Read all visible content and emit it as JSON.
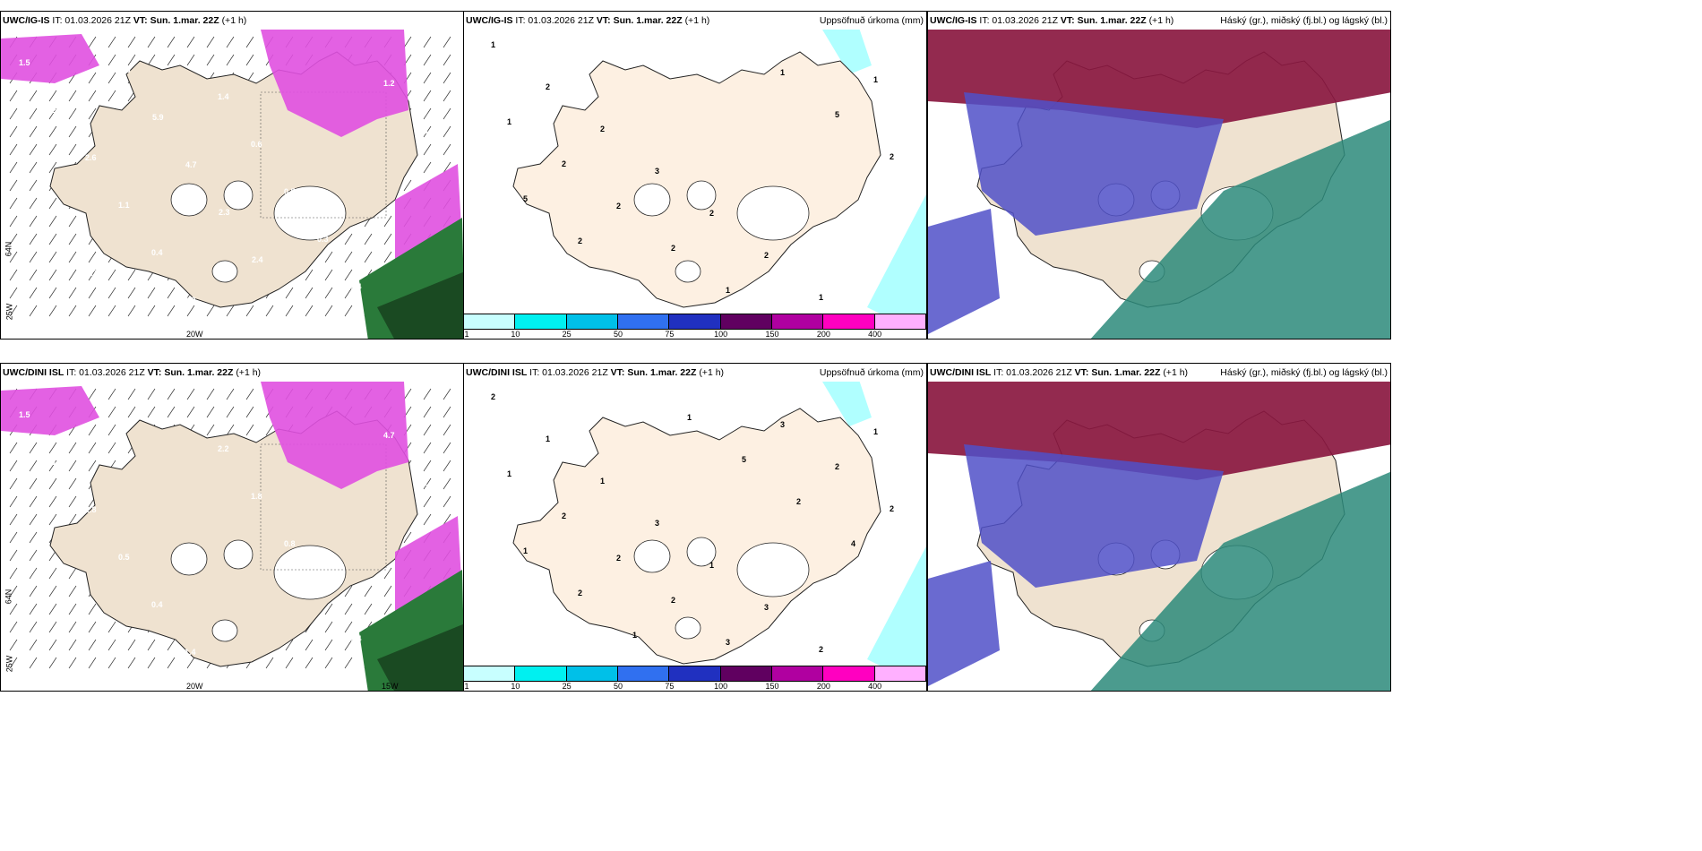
{
  "rows": [
    {
      "model": "UWC/IG-IS",
      "it": "IT: 01.03.2026 21Z",
      "vt_label": "VT:",
      "vt": "Sun. 1.mar. 22Z",
      "lead": "(+1 h)",
      "lat_label": "64N",
      "lon_left_label": "25W",
      "lon_mid_label": "20W"
    },
    {
      "model": "UWC/DINI ISL",
      "it": "IT: 01.03.2026 21Z",
      "vt_label": "VT:",
      "vt": "Sun. 1.mar. 22Z",
      "lead": "(+1 h)",
      "lat_label": "64N",
      "lon_left_label": "25W",
      "lon_mid_label": "20W",
      "lon_right_label": "15W"
    }
  ],
  "precip_title": "Uppsöfnuð úrkoma (mm)",
  "cloud_title": "Háský (gr.), miðský (fj.bl.) og lágský (bl.)",
  "colorbar": {
    "ticks": [
      "1",
      "10",
      "25",
      "50",
      "75",
      "100",
      "150",
      "200",
      "400"
    ],
    "colors": [
      "#c8ffff",
      "#00f0f0",
      "#00c0e8",
      "#3070f0",
      "#2030c0",
      "#600060",
      "#b000a0",
      "#ff00c0",
      "#ffb0ff"
    ]
  },
  "colors": {
    "land": "#efe2d0",
    "land_precip": "#fdf0e2",
    "glacier": "#ffffff",
    "snow_magenta": "#e050e0",
    "rain_green": "#2a7a3a",
    "high_cloud": "#8a1840",
    "mid_cloud": "#5050c8",
    "low_cloud": "#2c8a7a",
    "precip_cyan": "#b0ffff"
  },
  "precip_labels_top": [
    "1",
    "2",
    "2",
    "3",
    "2",
    "2",
    "1",
    "1",
    "1",
    "2",
    "2",
    "2",
    "1",
    "1",
    "5",
    "2",
    "5",
    "2"
  ],
  "precip_labels_bottom": [
    "2",
    "1",
    "1",
    "3",
    "1",
    "3",
    "2",
    "1",
    "1",
    "2",
    "2",
    "2",
    "3",
    "3",
    "2",
    "2",
    "1",
    "2",
    "1",
    "1",
    "5",
    "2",
    "4"
  ],
  "snow_labels_top": [
    "1.5",
    "2.0",
    "2.6",
    "1.1",
    "0.4",
    "1.2",
    "1.4",
    "0.6",
    "0.5",
    "0.3",
    "0.4",
    "1.2",
    "0.8",
    "0.5",
    "0.6",
    "0.3",
    "5.8",
    "5.9",
    "4.7",
    "2.3",
    "2.4"
  ],
  "snow_labels_bottom": [
    "1.5",
    "1.1",
    "1.8",
    "0.5",
    "0.4",
    "1.4",
    "2.2",
    "1.8",
    "0.8",
    "0.6",
    "0.4",
    "4.7",
    "2.2",
    "3.6"
  ]
}
